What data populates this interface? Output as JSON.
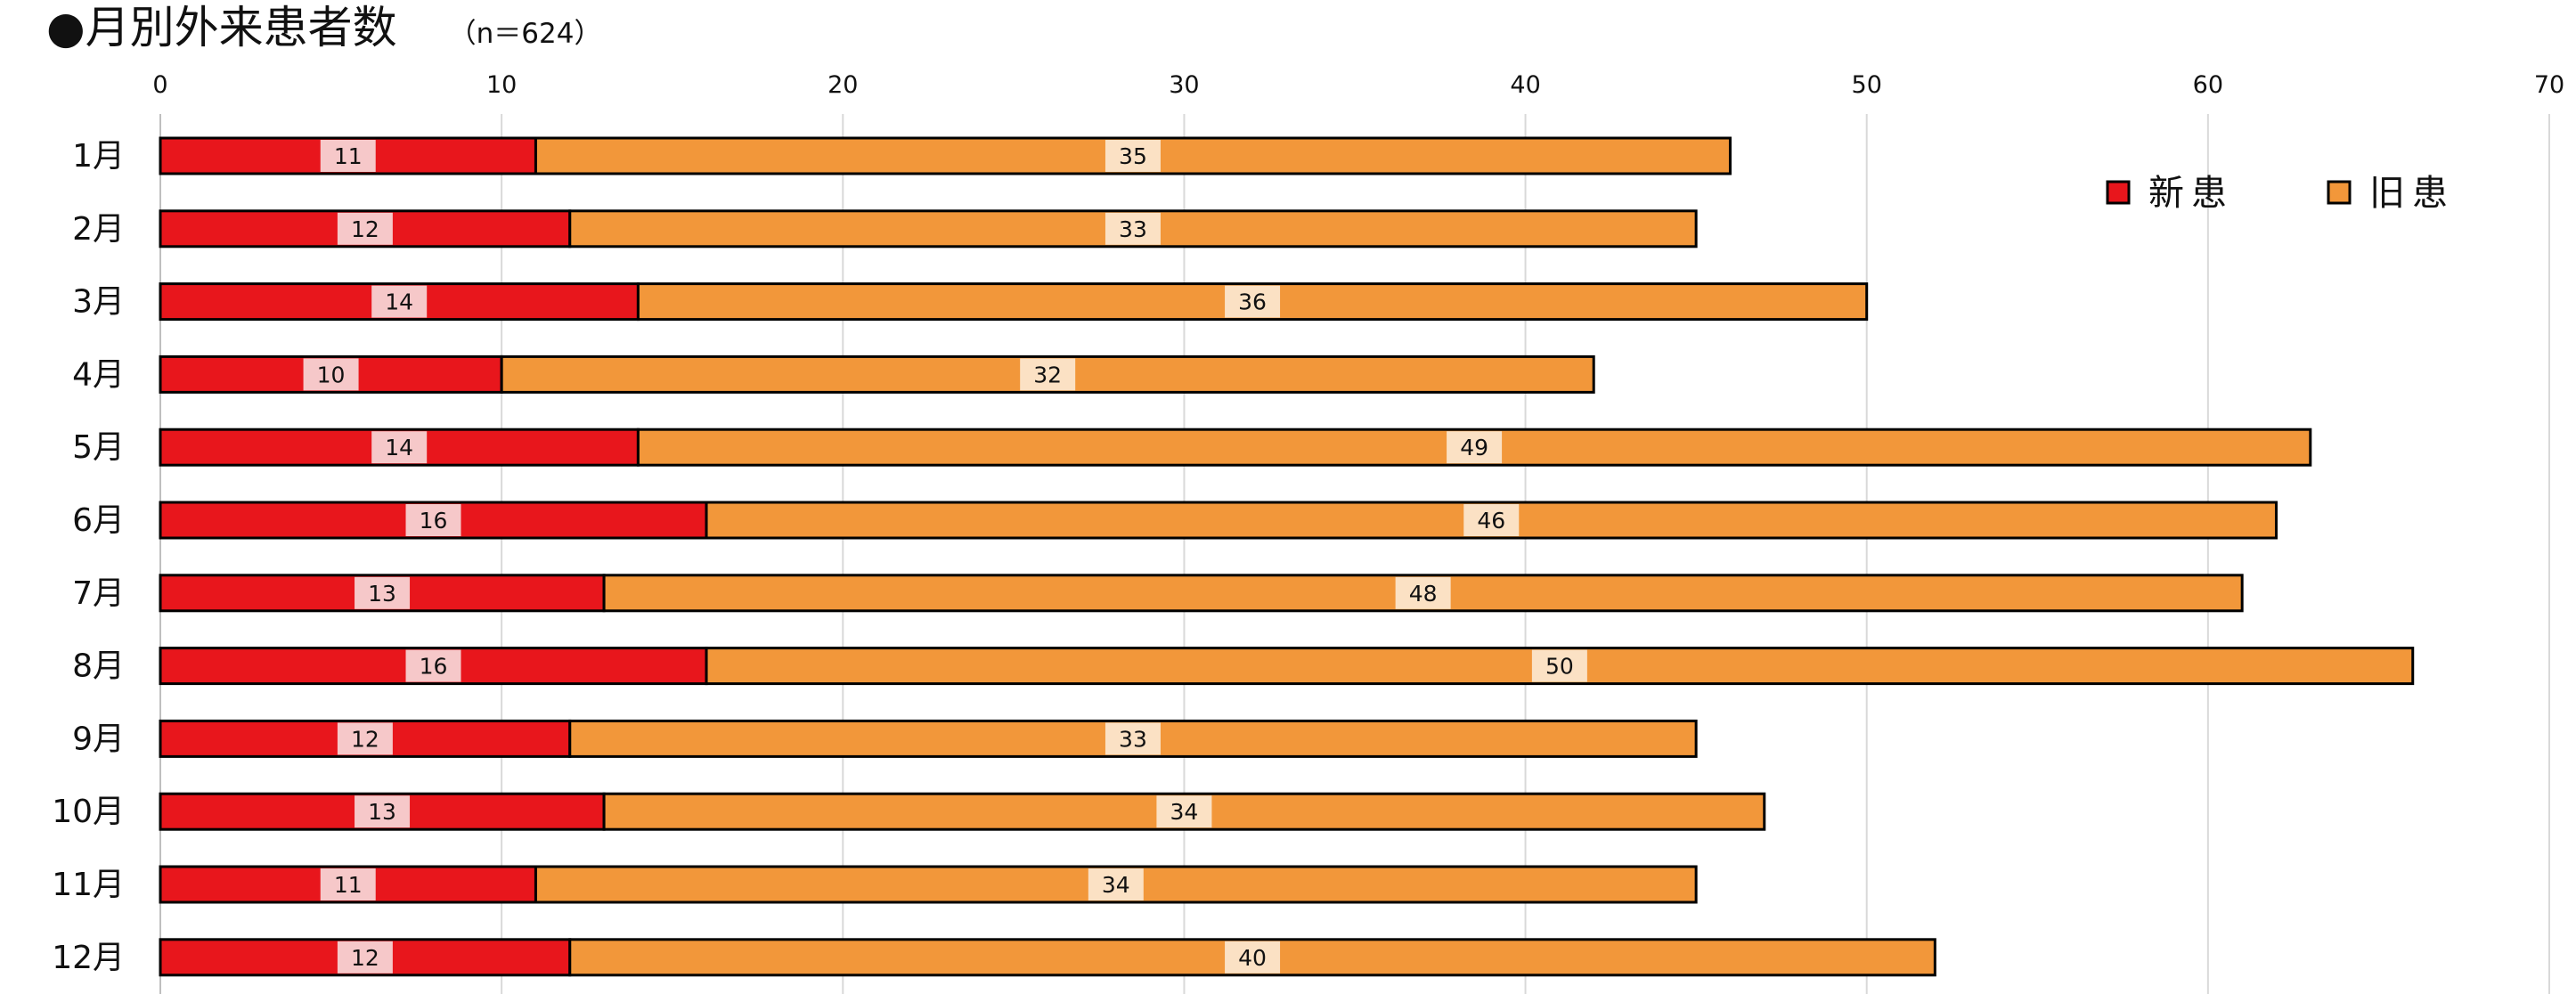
{
  "chart_data": {
    "type": "bar",
    "orientation": "horizontal",
    "stacked": true,
    "title": "●月別外来患者数",
    "subtitle": "（n＝624）",
    "categories": [
      "1月",
      "2月",
      "3月",
      "4月",
      "5月",
      "6月",
      "7月",
      "8月",
      "9月",
      "10月",
      "11月",
      "12月"
    ],
    "series": [
      {
        "name": "新患",
        "color": "#e8161c",
        "label_bg": "#f6c8c9",
        "values": [
          11,
          12,
          14,
          10,
          14,
          16,
          13,
          16,
          12,
          13,
          11,
          12
        ]
      },
      {
        "name": "旧患",
        "color": "#f2973a",
        "label_bg": "#fbe1c4",
        "values": [
          35,
          33,
          36,
          32,
          49,
          46,
          48,
          50,
          33,
          34,
          34,
          40
        ]
      }
    ],
    "xlim": [
      0,
      70
    ],
    "xticks": [
      "0",
      "10",
      "20",
      "30",
      "40",
      "50",
      "60",
      "70"
    ],
    "x_axis_position": "top",
    "grid": "vertical",
    "legend": "top-right"
  }
}
